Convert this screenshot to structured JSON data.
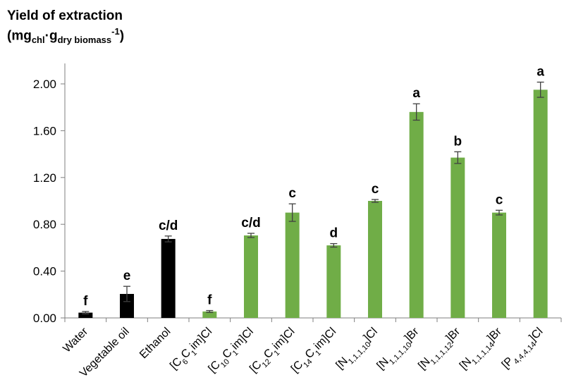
{
  "chart_data": {
    "type": "bar",
    "ylabel_line1": "Yield of extraction",
    "ylabel_unit_prefix": "(mg",
    "ylabel_unit_sub1": "chl",
    "ylabel_unit_dot": "·g",
    "ylabel_unit_sub2": "dry biomass",
    "ylabel_unit_sup": "-1",
    "ylabel_unit_suffix": ")",
    "ylim": [
      0,
      2.2
    ],
    "yticks": [
      0.0,
      0.4,
      0.8,
      1.2,
      1.6,
      2.0
    ],
    "ytick_labels": [
      "0.00",
      "0.40",
      "0.80",
      "1.20",
      "1.60",
      "2.00"
    ],
    "grid": false,
    "colors": {
      "conventional": "#000000",
      "ionic_liquid": "#70ad47",
      "error_bar": "#404040"
    },
    "categories": [
      {
        "parts": [
          [
            "Water",
            ""
          ]
        ],
        "value": 0.045,
        "error": 0.01,
        "letter": "f",
        "group": "conventional"
      },
      {
        "parts": [
          [
            "Vegetable oil",
            ""
          ]
        ],
        "value": 0.205,
        "error": 0.065,
        "letter": "e",
        "group": "conventional"
      },
      {
        "parts": [
          [
            "Ethanol",
            ""
          ]
        ],
        "value": 0.675,
        "error": 0.025,
        "letter": "c/d",
        "group": "conventional"
      },
      {
        "parts": [
          [
            "[C",
            ""
          ],
          [
            "6",
            "sub"
          ],
          [
            "C",
            ""
          ],
          [
            "1",
            "sub"
          ],
          [
            "im]Cl",
            ""
          ]
        ],
        "value": 0.055,
        "error": 0.008,
        "letter": "f",
        "group": "ionic_liquid"
      },
      {
        "parts": [
          [
            "[C",
            ""
          ],
          [
            "10",
            "sub"
          ],
          [
            "C",
            ""
          ],
          [
            "1",
            "sub"
          ],
          [
            "im]Cl",
            ""
          ]
        ],
        "value": 0.705,
        "error": 0.018,
        "letter": "c/d",
        "group": "ionic_liquid"
      },
      {
        "parts": [
          [
            "[C",
            ""
          ],
          [
            "12",
            "sub"
          ],
          [
            "C",
            ""
          ],
          [
            "1",
            "sub"
          ],
          [
            "im]Cl",
            ""
          ]
        ],
        "value": 0.9,
        "error": 0.075,
        "letter": "c",
        "group": "ionic_liquid"
      },
      {
        "parts": [
          [
            "[C",
            ""
          ],
          [
            "14",
            "sub"
          ],
          [
            "C",
            ""
          ],
          [
            "1",
            "sub"
          ],
          [
            "im]Cl",
            ""
          ]
        ],
        "value": 0.62,
        "error": 0.015,
        "letter": "d",
        "group": "ionic_liquid"
      },
      {
        "parts": [
          [
            "[N",
            ""
          ],
          [
            "1,1,1,10",
            "sub"
          ],
          [
            "]Cl",
            ""
          ]
        ],
        "value": 1.0,
        "error": 0.012,
        "letter": "c",
        "group": "ionic_liquid"
      },
      {
        "parts": [
          [
            "[N",
            ""
          ],
          [
            "1,1,1,10",
            "sub"
          ],
          [
            "]Br",
            ""
          ]
        ],
        "value": 1.76,
        "error": 0.07,
        "letter": "a",
        "group": "ionic_liquid"
      },
      {
        "parts": [
          [
            "[N",
            ""
          ],
          [
            "1,1,1,12",
            "sub"
          ],
          [
            "]Br",
            ""
          ]
        ],
        "value": 1.37,
        "error": 0.05,
        "letter": "b",
        "group": "ionic_liquid"
      },
      {
        "parts": [
          [
            "[N",
            ""
          ],
          [
            "1,1,1,14",
            "sub"
          ],
          [
            "]Br",
            ""
          ]
        ],
        "value": 0.9,
        "error": 0.02,
        "letter": "c",
        "group": "ionic_liquid"
      },
      {
        "parts": [
          [
            "[P",
            ""
          ],
          [
            "4,4,4,14",
            "sub"
          ],
          [
            "]Cl",
            ""
          ]
        ],
        "value": 1.95,
        "error": 0.065,
        "letter": "a",
        "group": "ionic_liquid"
      }
    ]
  }
}
